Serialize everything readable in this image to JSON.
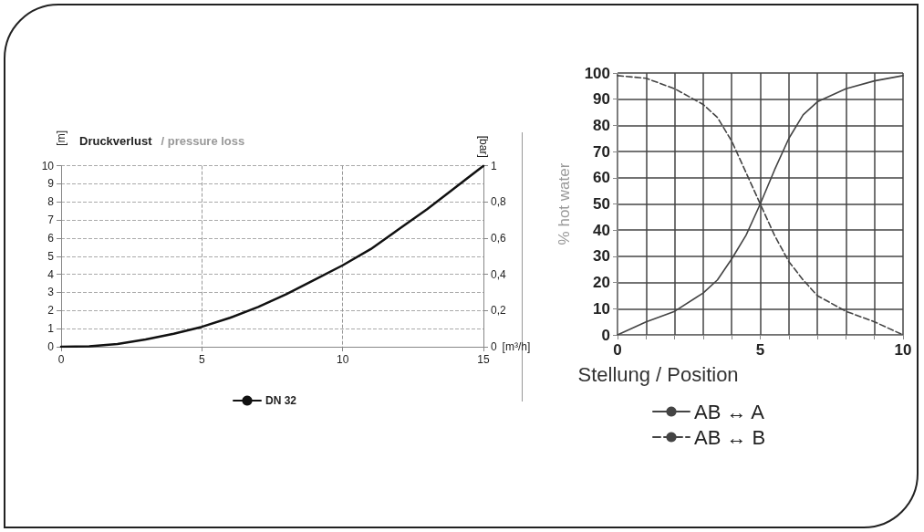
{
  "chart_data": [
    {
      "type": "line",
      "title": "Druckverlust",
      "subtitle": "/ pressure loss",
      "xlabel": "[m³/h]",
      "ylabel": "[m]",
      "y2label": "[bar]",
      "x": [
        0,
        1,
        2,
        3,
        4,
        5,
        6,
        7,
        8,
        9,
        10,
        11,
        12,
        13,
        14,
        15
      ],
      "series": [
        {
          "name": "DN 32",
          "color": "#111111",
          "values": [
            0,
            0.03,
            0.15,
            0.4,
            0.72,
            1.1,
            1.6,
            2.2,
            2.9,
            3.7,
            4.5,
            5.4,
            6.5,
            7.6,
            8.8,
            10
          ]
        }
      ],
      "xlim": [
        0,
        15
      ],
      "xticks": [
        0,
        5,
        10,
        15
      ],
      "ylim": [
        0,
        10
      ],
      "yticks": [
        0,
        1,
        2,
        3,
        4,
        5,
        6,
        7,
        8,
        9,
        10
      ],
      "y2lim": [
        0,
        1
      ],
      "y2ticks": [
        0,
        {
          "value": 0.2,
          "label": "0,2"
        },
        {
          "value": 0.4,
          "label": "0,4"
        },
        {
          "value": 0.6,
          "label": "0,6"
        },
        {
          "value": 0.8,
          "label": "0,8"
        },
        1
      ],
      "grid": true,
      "legend": "bottom",
      "marker": "none",
      "line_style": "solid"
    },
    {
      "type": "line",
      "xlabel": "Stellung / Position",
      "ylabel": "% hot water",
      "x": [
        0,
        1,
        2,
        3,
        3.5,
        4,
        4.5,
        5,
        5.5,
        6,
        6.5,
        7,
        8,
        9,
        10
      ],
      "series": [
        {
          "name": "AB ↔ A",
          "color": "#444444",
          "line_style": "solid",
          "values": [
            0,
            5,
            9,
            16,
            21,
            29,
            38,
            50,
            63,
            75,
            84,
            89,
            94,
            97,
            99
          ]
        },
        {
          "name": "AB ↔ B",
          "color": "#444444",
          "line_style": "dashed",
          "values": [
            99,
            98,
            94,
            88,
            83,
            74,
            62,
            50,
            38,
            28,
            21,
            15,
            9,
            5,
            0
          ]
        }
      ],
      "xlim": [
        0,
        10
      ],
      "xticks": [
        0,
        {
          "value": 1,
          "label": null
        },
        {
          "value": 2,
          "label": null
        },
        {
          "value": 3,
          "label": null
        },
        {
          "value": 4,
          "label": null
        },
        5,
        {
          "value": 6,
          "label": null
        },
        {
          "value": 7,
          "label": null
        },
        {
          "value": 8,
          "label": null
        },
        {
          "value": 9,
          "label": null
        },
        10
      ],
      "ylim": [
        0,
        100
      ],
      "yticks": [
        0,
        10,
        20,
        30,
        40,
        50,
        60,
        70,
        80,
        90,
        100
      ],
      "grid": true,
      "legend": "bottom",
      "marker": "none"
    }
  ]
}
